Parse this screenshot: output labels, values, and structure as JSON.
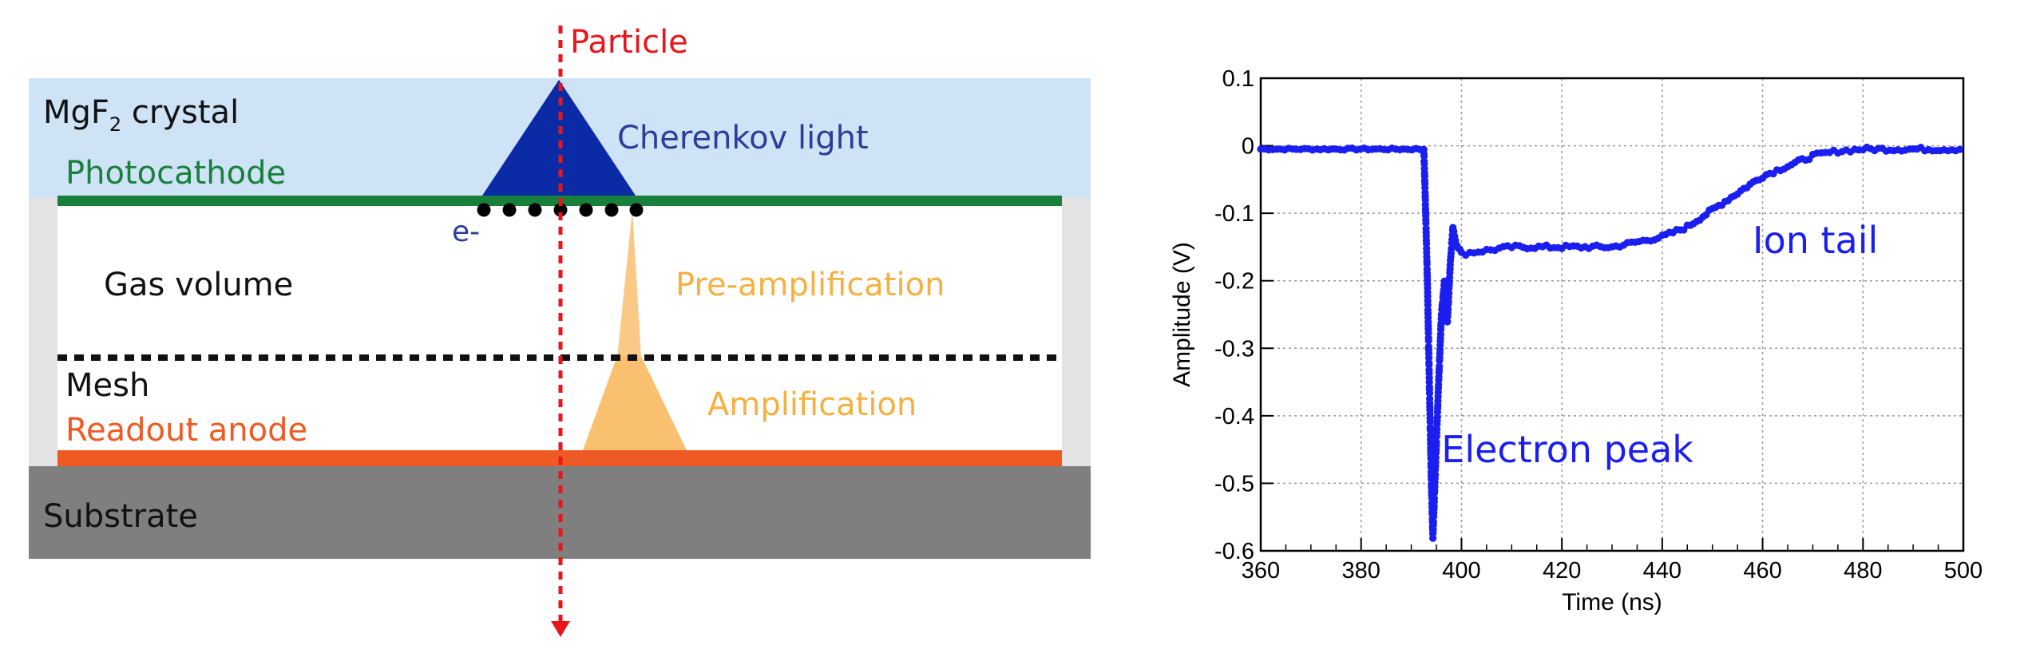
{
  "diagram": {
    "particle_label": "Particle",
    "crystal_label": "MgF",
    "crystal_sub": "2",
    "crystal_suffix": " crystal",
    "cherenkov_label": "Cherenkov light",
    "photocathode_label": "Photocathode",
    "electron_label": "e-",
    "gas_label": "Gas volume",
    "preamp_label": "Pre-amplification",
    "mesh_label": "Mesh",
    "anode_label": "Readout anode",
    "amp_label": "Amplification",
    "substrate_label": "Substrate",
    "colors": {
      "crystal": "#cfe3f7",
      "cherenkov": "#0a2aa6",
      "photocathode": "#17803a",
      "anode": "#ef5a24",
      "amplification": "#f9c070",
      "substrate": "#7f7f7f",
      "side_walls": "#e3e3e3",
      "particle": "#e8161b",
      "label_blue": "#2c3d9a",
      "label_orange": "#f5b040"
    }
  },
  "chart_data": {
    "type": "scatter",
    "xlabel": "Time (ns)",
    "ylabel": "Amplitude (V)",
    "xlim": [
      360,
      500
    ],
    "ylim": [
      -0.6,
      0.1
    ],
    "xticks": [
      360,
      380,
      400,
      420,
      440,
      460,
      480,
      500
    ],
    "yticks": [
      0.1,
      0,
      -0.1,
      -0.2,
      -0.3,
      -0.4,
      -0.5,
      -0.6
    ],
    "grid": true,
    "series_color": "#1a1ff0",
    "annotations": [
      {
        "text": "Electron peak",
        "x": 396,
        "y": -0.45
      },
      {
        "text": "Ion tail",
        "x": 458,
        "y": -0.14
      }
    ],
    "waveform": [
      [
        360,
        -0.005
      ],
      [
        392.5,
        -0.005
      ],
      [
        392.8,
        -0.08
      ],
      [
        393.2,
        -0.2
      ],
      [
        393.6,
        -0.35
      ],
      [
        394.0,
        -0.5
      ],
      [
        394.3,
        -0.58
      ],
      [
        394.8,
        -0.48
      ],
      [
        395.4,
        -0.36
      ],
      [
        396.0,
        -0.25
      ],
      [
        396.6,
        -0.2
      ],
      [
        397.2,
        -0.26
      ],
      [
        397.8,
        -0.17
      ],
      [
        398.3,
        -0.12
      ],
      [
        398.8,
        -0.14
      ],
      [
        400,
        -0.16
      ],
      [
        405,
        -0.155
      ],
      [
        410,
        -0.15
      ],
      [
        420,
        -0.15
      ],
      [
        430,
        -0.15
      ],
      [
        440,
        -0.135
      ],
      [
        445,
        -0.12
      ],
      [
        450,
        -0.095
      ],
      [
        455,
        -0.07
      ],
      [
        460,
        -0.045
      ],
      [
        465,
        -0.03
      ],
      [
        470,
        -0.015
      ],
      [
        475,
        -0.008
      ],
      [
        480,
        -0.005
      ],
      [
        490,
        -0.005
      ],
      [
        500,
        -0.005
      ]
    ]
  }
}
